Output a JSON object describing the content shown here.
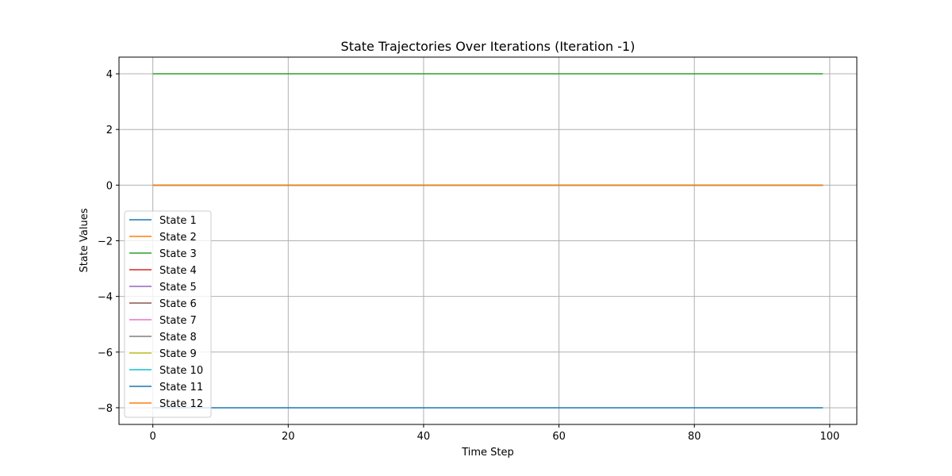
{
  "chart_data": {
    "type": "line",
    "title": "State Trajectories Over Iterations (Iteration -1)",
    "xlabel": "Time Step",
    "ylabel": "State Values",
    "xlim": [
      -5,
      104
    ],
    "ylim": [
      -8.6,
      4.6
    ],
    "x_ticks": [
      0,
      20,
      40,
      60,
      80,
      100
    ],
    "y_ticks": [
      -8,
      -6,
      -4,
      -2,
      0,
      2,
      4
    ],
    "grid": true,
    "legend_position": "lower-left",
    "x_start": 0,
    "x_end": 99,
    "series": [
      {
        "name": "State 1",
        "color": "#1f77b4",
        "values": [
          0,
          0
        ]
      },
      {
        "name": "State 2",
        "color": "#ff7f0e",
        "values": [
          0,
          0
        ]
      },
      {
        "name": "State 3",
        "color": "#2ca02c",
        "values": [
          4,
          4
        ]
      },
      {
        "name": "State 4",
        "color": "#d62728",
        "values": [
          0,
          0
        ]
      },
      {
        "name": "State 5",
        "color": "#9467bd",
        "values": [
          0,
          0
        ]
      },
      {
        "name": "State 6",
        "color": "#8c564b",
        "values": [
          0,
          0
        ]
      },
      {
        "name": "State 7",
        "color": "#e377c2",
        "values": [
          0,
          0
        ]
      },
      {
        "name": "State 8",
        "color": "#7f7f7f",
        "values": [
          0,
          0
        ]
      },
      {
        "name": "State 9",
        "color": "#bcbd22",
        "values": [
          0,
          0
        ]
      },
      {
        "name": "State 10",
        "color": "#17becf",
        "values": [
          0,
          0
        ]
      },
      {
        "name": "State 11",
        "color": "#1f77b4",
        "values": [
          -8,
          -8
        ]
      },
      {
        "name": "State 12",
        "color": "#ff7f0e",
        "values": [
          0,
          0
        ]
      }
    ]
  }
}
